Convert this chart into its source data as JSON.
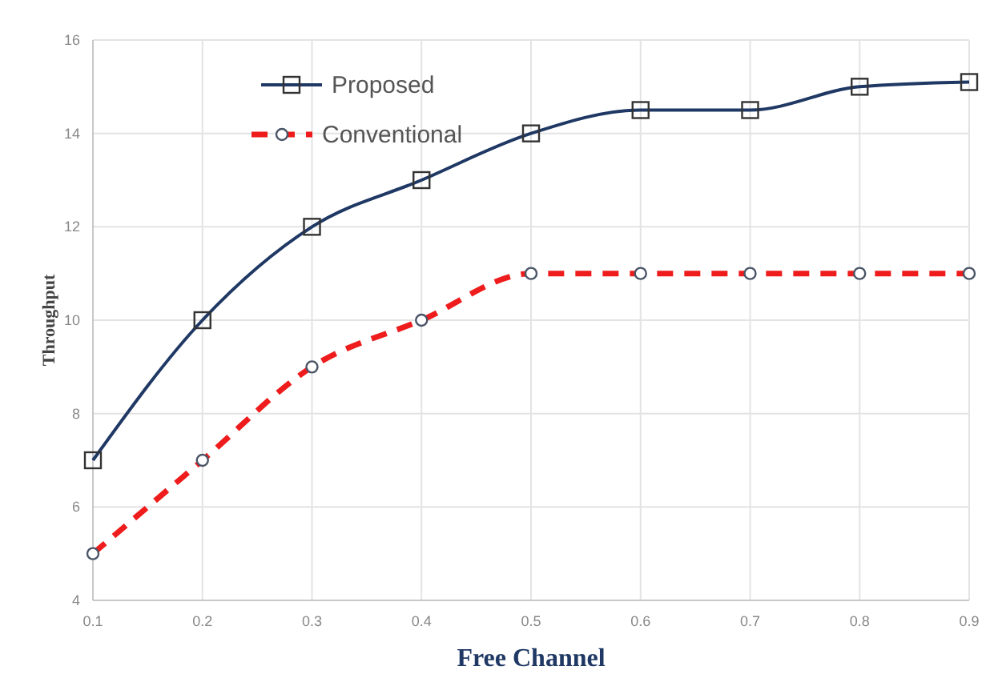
{
  "chart_data": {
    "type": "line",
    "xlabel": "Free Channel",
    "ylabel": "Throughput",
    "x": [
      0.1,
      0.2,
      0.3,
      0.4,
      0.5,
      0.6,
      0.7,
      0.8,
      0.9
    ],
    "series": [
      {
        "name": "Proposed",
        "color": "#1f3864",
        "values": [
          7,
          10,
          12,
          13,
          14,
          14.5,
          14.5,
          15,
          15.1
        ],
        "marker": "square",
        "line_style": "solid"
      },
      {
        "name": "Conventional",
        "color": "#ee1c1c",
        "values": [
          5,
          7,
          9,
          10,
          11,
          11,
          11,
          11,
          11
        ],
        "marker": "circle",
        "line_style": "dashed"
      }
    ],
    "xlim": [
      0.1,
      0.9
    ],
    "xticks": [
      0.1,
      0.2,
      0.3,
      0.4,
      0.5,
      0.6,
      0.7,
      0.8,
      0.9
    ],
    "ylim": [
      4,
      16
    ],
    "yticks": [
      4,
      6,
      8,
      10,
      12,
      14,
      16
    ],
    "grid": true,
    "legend": "top left"
  }
}
